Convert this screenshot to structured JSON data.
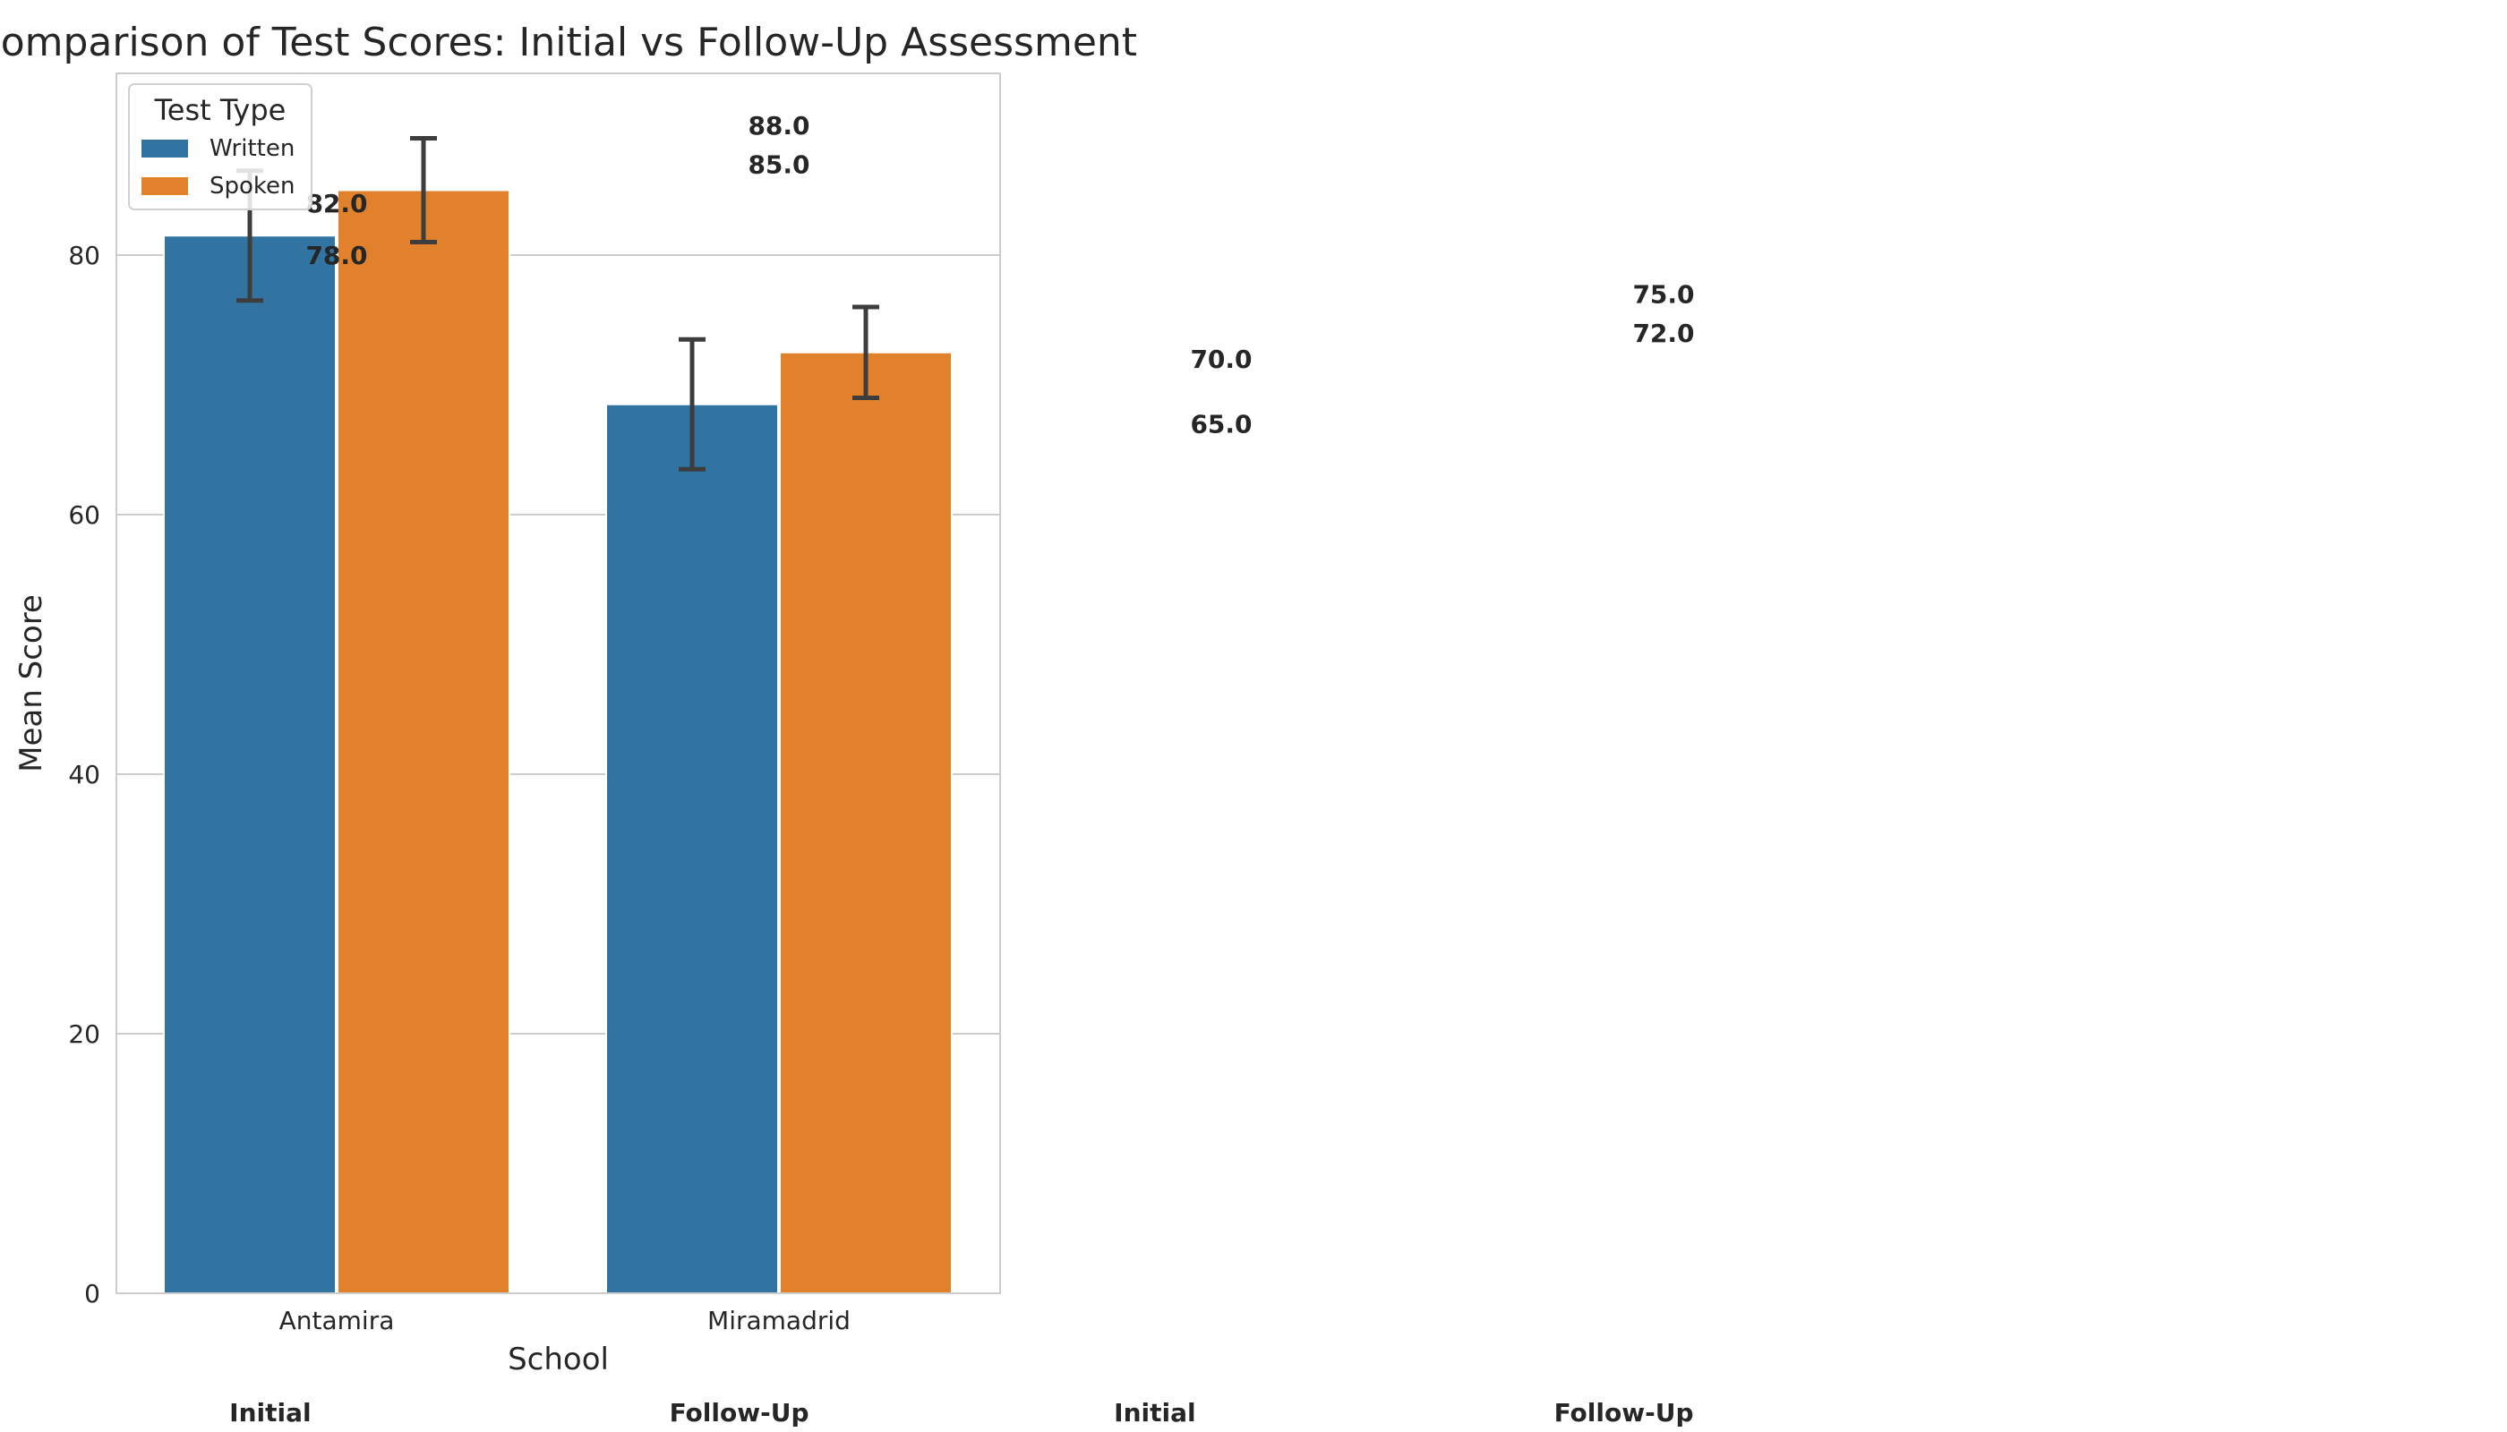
{
  "chart_data": {
    "type": "bar",
    "title": "Comparison of Test Scores: Initial vs Follow-Up Assessment",
    "xlabel": "School",
    "ylabel": "Mean Score",
    "ylim": [
      0,
      94
    ],
    "yticks": [
      0,
      20,
      40,
      60,
      80
    ],
    "grid": true,
    "categories": [
      "Antamira",
      "Miramadrid"
    ],
    "legend": {
      "title": "Test Type",
      "placement": "top-left"
    },
    "series": [
      {
        "name": "Written",
        "color": "#3274a1",
        "values": [
          81.5,
          68.5
        ],
        "error": [
          [
            76.5,
            86.5
          ],
          [
            63.5,
            73.5
          ]
        ]
      },
      {
        "name": "Spoken",
        "color": "#e1812c",
        "values": [
          85.0,
          72.5
        ],
        "error": [
          [
            81.0,
            89.0
          ],
          [
            69.0,
            76.0
          ]
        ]
      }
    ],
    "annotations": [
      {
        "text": "82.0",
        "x": 0.0,
        "y": 84.0
      },
      {
        "text": "78.0",
        "x": 0.0,
        "y": 80.0
      },
      {
        "text": "88.0",
        "x": 1.0,
        "y": 90.0
      },
      {
        "text": "85.0",
        "x": 1.0,
        "y": 87.0
      },
      {
        "text": "70.0",
        "x": 2.0,
        "y": 72.0
      },
      {
        "text": "65.0",
        "x": 2.0,
        "y": 67.0
      },
      {
        "text": "75.0",
        "x": 3.0,
        "y": 77.0
      },
      {
        "text": "72.0",
        "x": 3.0,
        "y": 74.0
      }
    ],
    "phase_labels": [
      {
        "text": "Initial",
        "x": -0.15
      },
      {
        "text": "Follow-Up",
        "x": 0.91
      },
      {
        "text": "Initial",
        "x": 1.85
      },
      {
        "text": "Follow-Up",
        "x": 2.91
      }
    ]
  }
}
